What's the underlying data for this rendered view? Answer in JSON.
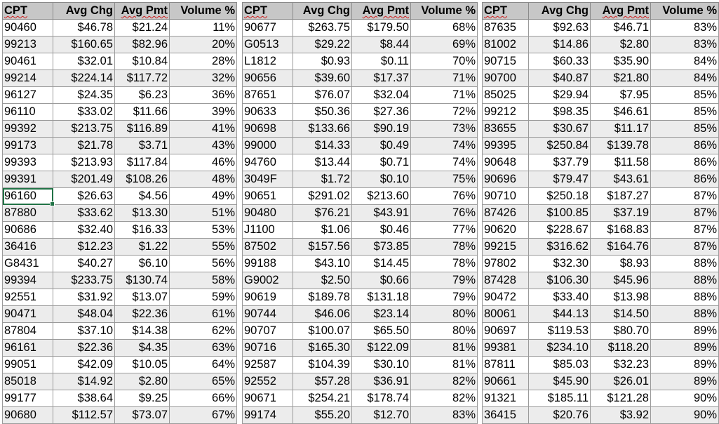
{
  "headers": [
    "CPT",
    "Avg Chg",
    "Avg Pmt",
    "Volume %"
  ],
  "sections": [
    {
      "rows": [
        [
          "90460",
          "$46.78",
          "$21.24",
          "11%"
        ],
        [
          "99213",
          "$160.65",
          "$82.96",
          "20%"
        ],
        [
          "90461",
          "$32.01",
          "$10.84",
          "28%"
        ],
        [
          "99214",
          "$224.14",
          "$117.72",
          "32%"
        ],
        [
          "96127",
          "$24.35",
          "$6.23",
          "36%"
        ],
        [
          "96110",
          "$33.02",
          "$11.66",
          "39%"
        ],
        [
          "99392",
          "$213.75",
          "$116.89",
          "41%"
        ],
        [
          "99173",
          "$21.78",
          "$3.71",
          "43%"
        ],
        [
          "99393",
          "$213.93",
          "$117.84",
          "46%"
        ],
        [
          "99391",
          "$201.49",
          "$108.26",
          "48%"
        ],
        [
          "96160",
          "$26.63",
          "$4.56",
          "49%"
        ],
        [
          "87880",
          "$33.62",
          "$13.30",
          "51%"
        ],
        [
          "90686",
          "$32.40",
          "$16.33",
          "53%"
        ],
        [
          "36416",
          "$12.23",
          "$1.22",
          "55%"
        ],
        [
          "G8431",
          "$40.27",
          "$6.10",
          "56%"
        ],
        [
          "99394",
          "$233.75",
          "$130.74",
          "58%"
        ],
        [
          "92551",
          "$31.92",
          "$13.07",
          "59%"
        ],
        [
          "90471",
          "$48.04",
          "$22.36",
          "61%"
        ],
        [
          "87804",
          "$37.10",
          "$14.38",
          "62%"
        ],
        [
          "96161",
          "$22.36",
          "$4.35",
          "63%"
        ],
        [
          "99051",
          "$42.09",
          "$10.05",
          "64%"
        ],
        [
          "85018",
          "$14.92",
          "$2.80",
          "65%"
        ],
        [
          "99177",
          "$38.64",
          "$9.25",
          "66%"
        ],
        [
          "90680",
          "$112.57",
          "$73.07",
          "67%"
        ]
      ]
    },
    {
      "rows": [
        [
          "90677",
          "$263.75",
          "$179.50",
          "68%"
        ],
        [
          "G0513",
          "$29.22",
          "$8.44",
          "69%"
        ],
        [
          "L1812",
          "$0.93",
          "$0.11",
          "70%"
        ],
        [
          "90656",
          "$39.60",
          "$17.37",
          "71%"
        ],
        [
          "87651",
          "$76.07",
          "$32.04",
          "71%"
        ],
        [
          "90633",
          "$50.36",
          "$27.36",
          "72%"
        ],
        [
          "90698",
          "$133.66",
          "$90.19",
          "73%"
        ],
        [
          "99000",
          "$14.33",
          "$0.49",
          "74%"
        ],
        [
          "94760",
          "$13.44",
          "$0.71",
          "74%"
        ],
        [
          "3049F",
          "$1.72",
          "$0.10",
          "75%"
        ],
        [
          "90651",
          "$291.02",
          "$213.60",
          "76%"
        ],
        [
          "90480",
          "$76.21",
          "$43.91",
          "76%"
        ],
        [
          "J1100",
          "$1.06",
          "$0.46",
          "77%"
        ],
        [
          "87502",
          "$157.56",
          "$73.85",
          "78%"
        ],
        [
          "99188",
          "$43.10",
          "$14.45",
          "78%"
        ],
        [
          "G9002",
          "$2.50",
          "$0.66",
          "79%"
        ],
        [
          "90619",
          "$189.78",
          "$131.18",
          "79%"
        ],
        [
          "90744",
          "$46.06",
          "$23.14",
          "80%"
        ],
        [
          "90707",
          "$100.07",
          "$65.50",
          "80%"
        ],
        [
          "90716",
          "$165.30",
          "$122.09",
          "81%"
        ],
        [
          "92587",
          "$104.39",
          "$30.10",
          "81%"
        ],
        [
          "92552",
          "$57.28",
          "$36.91",
          "82%"
        ],
        [
          "90671",
          "$254.21",
          "$178.74",
          "82%"
        ],
        [
          "99174",
          "$55.20",
          "$12.70",
          "83%"
        ]
      ]
    },
    {
      "rows": [
        [
          "87635",
          "$92.63",
          "$46.71",
          "83%"
        ],
        [
          "81002",
          "$14.86",
          "$2.80",
          "83%"
        ],
        [
          "90715",
          "$60.33",
          "$35.90",
          "84%"
        ],
        [
          "90700",
          "$40.87",
          "$21.80",
          "84%"
        ],
        [
          "85025",
          "$29.94",
          "$7.95",
          "85%"
        ],
        [
          "99212",
          "$98.35",
          "$46.61",
          "85%"
        ],
        [
          "83655",
          "$30.67",
          "$11.17",
          "85%"
        ],
        [
          "99395",
          "$250.84",
          "$139.78",
          "86%"
        ],
        [
          "90648",
          "$37.79",
          "$11.58",
          "86%"
        ],
        [
          "90696",
          "$79.47",
          "$43.61",
          "86%"
        ],
        [
          "90710",
          "$250.18",
          "$187.27",
          "87%"
        ],
        [
          "87426",
          "$100.85",
          "$37.19",
          "87%"
        ],
        [
          "90620",
          "$228.67",
          "$168.83",
          "87%"
        ],
        [
          "99215",
          "$316.62",
          "$164.76",
          "87%"
        ],
        [
          "97802",
          "$32.30",
          "$8.93",
          "88%"
        ],
        [
          "87428",
          "$106.30",
          "$45.96",
          "88%"
        ],
        [
          "90472",
          "$33.40",
          "$13.98",
          "88%"
        ],
        [
          "80061",
          "$44.13",
          "$14.50",
          "88%"
        ],
        [
          "90697",
          "$119.53",
          "$80.70",
          "89%"
        ],
        [
          "99381",
          "$234.10",
          "$118.20",
          "89%"
        ],
        [
          "87811",
          "$85.03",
          "$32.23",
          "89%"
        ],
        [
          "90661",
          "$45.90",
          "$26.01",
          "89%"
        ],
        [
          "91321",
          "$185.11",
          "$121.28",
          "90%"
        ],
        [
          "36415",
          "$20.76",
          "$3.92",
          "90%"
        ]
      ]
    }
  ]
}
